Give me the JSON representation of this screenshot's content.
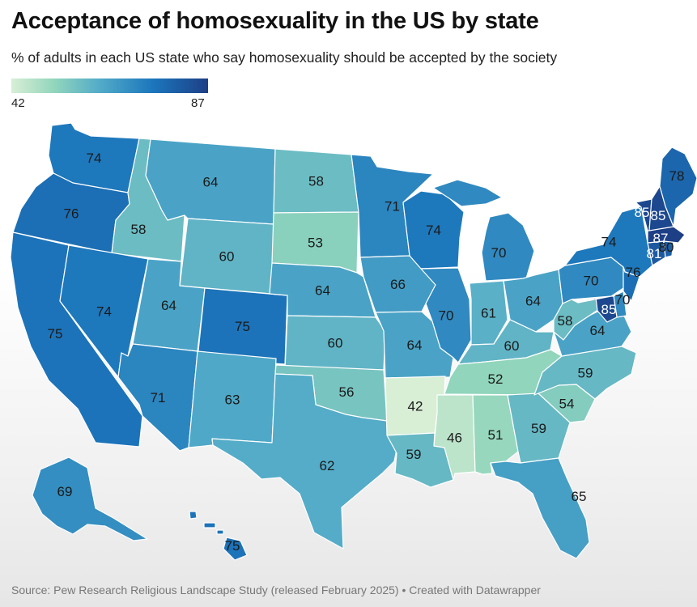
{
  "title": "Acceptance of homosexuality in the US by state",
  "subtitle": "% of adults in each US state who say homosexuality should be accepted by the society",
  "legend": {
    "min": "42",
    "max": "87",
    "color_low": "#d8efd6",
    "color_high": "#1d3f86"
  },
  "source": "Source: Pew Research Religious Landscape Study (released February 2025) • Created with Datawrapper",
  "states": [
    {
      "name": "Washington",
      "value": 74
    },
    {
      "name": "Oregon",
      "value": 76
    },
    {
      "name": "California",
      "value": 75
    },
    {
      "name": "Idaho",
      "value": 58
    },
    {
      "name": "Nevada",
      "value": 74
    },
    {
      "name": "Montana",
      "value": 64
    },
    {
      "name": "Wyoming",
      "value": 60
    },
    {
      "name": "Utah",
      "value": 64
    },
    {
      "name": "Arizona",
      "value": 71
    },
    {
      "name": "Colorado",
      "value": 75
    },
    {
      "name": "New Mexico",
      "value": 63
    },
    {
      "name": "North Dakota",
      "value": 58
    },
    {
      "name": "South Dakota",
      "value": 53
    },
    {
      "name": "Nebraska",
      "value": 64
    },
    {
      "name": "Kansas",
      "value": 60
    },
    {
      "name": "Oklahoma",
      "value": 56
    },
    {
      "name": "Texas",
      "value": 62
    },
    {
      "name": "Minnesota",
      "value": 71
    },
    {
      "name": "Iowa",
      "value": 66
    },
    {
      "name": "Missouri",
      "value": 64
    },
    {
      "name": "Arkansas",
      "value": 42
    },
    {
      "name": "Louisiana",
      "value": 59
    },
    {
      "name": "Wisconsin",
      "value": 74
    },
    {
      "name": "Illinois",
      "value": 70
    },
    {
      "name": "Michigan",
      "value": 70
    },
    {
      "name": "Indiana",
      "value": 61
    },
    {
      "name": "Ohio",
      "value": 64
    },
    {
      "name": "Kentucky",
      "value": 60
    },
    {
      "name": "Tennessee",
      "value": 52
    },
    {
      "name": "Mississippi",
      "value": 46
    },
    {
      "name": "Alabama",
      "value": 51
    },
    {
      "name": "Georgia",
      "value": 59
    },
    {
      "name": "Florida",
      "value": 65
    },
    {
      "name": "South Carolina",
      "value": 54
    },
    {
      "name": "North Carolina",
      "value": 59
    },
    {
      "name": "Virginia",
      "value": 64
    },
    {
      "name": "West Virginia",
      "value": 58
    },
    {
      "name": "Pennsylvania",
      "value": 70
    },
    {
      "name": "New York",
      "value": 74
    },
    {
      "name": "New Jersey",
      "value": 76
    },
    {
      "name": "Delaware",
      "value": 70
    },
    {
      "name": "Maryland",
      "value": 85
    },
    {
      "name": "Connecticut",
      "value": 81
    },
    {
      "name": "Rhode Island",
      "value": 80
    },
    {
      "name": "Massachusetts",
      "value": 87
    },
    {
      "name": "Vermont",
      "value": 85
    },
    {
      "name": "New Hampshire",
      "value": 85
    },
    {
      "name": "Maine",
      "value": 78
    },
    {
      "name": "Alaska",
      "value": 69
    },
    {
      "name": "Hawaii",
      "value": 75
    }
  ]
}
